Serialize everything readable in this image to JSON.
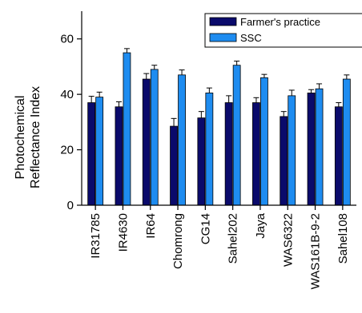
{
  "chart_data": {
    "type": "bar",
    "title": "",
    "xlabel": "",
    "ylabel_line1": "Photochemical",
    "ylabel_line2": "Reflectance Index",
    "ylim": [
      0,
      70
    ],
    "yticks": [
      0,
      20,
      40,
      60
    ],
    "grid": false,
    "legend_position": "top-right",
    "categories": [
      "IR31785",
      "IR4630",
      "IR64",
      "Chomrong",
      "CG14",
      "Sahel202",
      "Jaya",
      "WAS6322",
      "WAS161B-9-2",
      "Sahel108"
    ],
    "series": [
      {
        "name": "Farmer's practice",
        "color": "#0a0a6b",
        "values": [
          37,
          35.5,
          45.5,
          28.5,
          31.5,
          37,
          37,
          32,
          40.5,
          35.5
        ],
        "errors": [
          2.3,
          1.8,
          2,
          2.8,
          2.3,
          2.5,
          1.8,
          1.8,
          1.2,
          1.5
        ]
      },
      {
        "name": "SSC",
        "color": "#1e8cf0",
        "values": [
          39,
          55,
          49,
          47,
          40.5,
          50.5,
          46,
          39.5,
          42,
          45.5
        ],
        "errors": [
          1.8,
          1.5,
          1.5,
          1.8,
          1.8,
          1.5,
          1.2,
          2,
          1.8,
          1.5
        ]
      }
    ]
  }
}
